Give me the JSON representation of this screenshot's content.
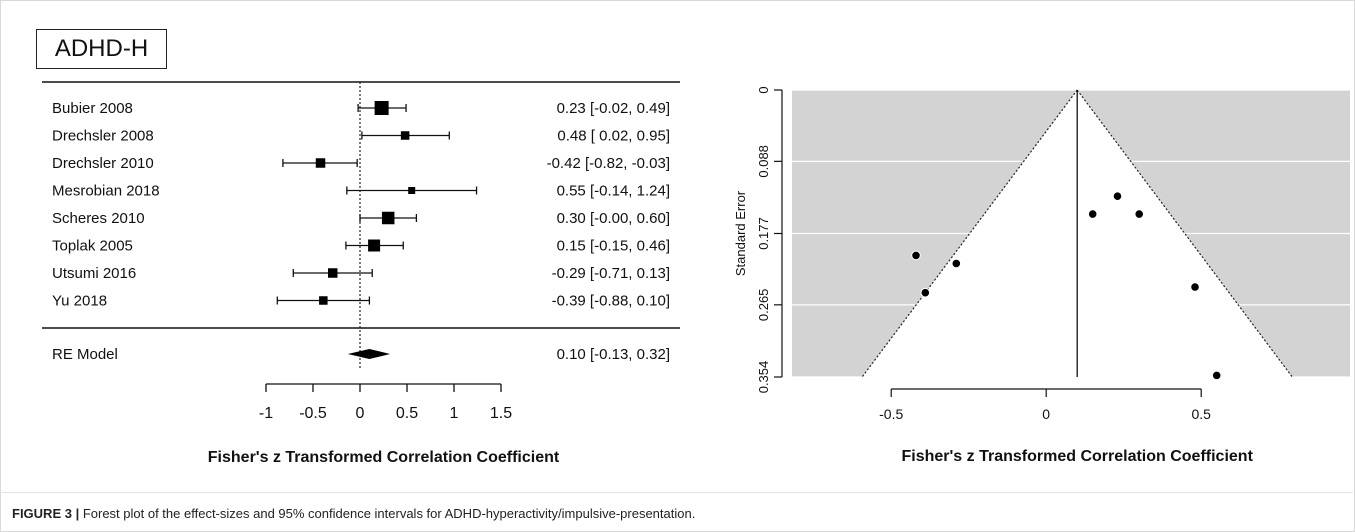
{
  "panel_label": "ADHD-H",
  "caption": {
    "label": "FIGURE 3 |",
    "text": "Forest plot of the effect-sizes and 95% confidence intervals for ADHD-hyperactivity/impulsive-presentation."
  },
  "chart_data": [
    {
      "type": "forest",
      "xlabel": "Fisher's z Transformed Correlation Coefficient",
      "xticks": [
        "-1",
        "-0.5",
        "0",
        "0.5",
        "1",
        "1.5"
      ],
      "xlim": [
        -1,
        1.5
      ],
      "studies": [
        {
          "name": "Bubier 2008",
          "est": 0.23,
          "lo": -0.02,
          "hi": 0.49,
          "label": "0.23 [-0.02,  0.49]",
          "weight": 1.0
        },
        {
          "name": "Drechsler 2008",
          "est": 0.48,
          "lo": 0.02,
          "hi": 0.95,
          "label": "0.48 [ 0.02,  0.95]",
          "weight": 0.45
        },
        {
          "name": "Drechsler 2010",
          "est": -0.42,
          "lo": -0.82,
          "hi": -0.03,
          "label": "-0.42 [-0.82, -0.03]",
          "weight": 0.55
        },
        {
          "name": "Mesrobian 2018",
          "est": 0.55,
          "lo": -0.14,
          "hi": 1.24,
          "label": "0.55 [-0.14,  1.24]",
          "weight": 0.3
        },
        {
          "name": "Scheres 2010",
          "est": 0.3,
          "lo": -0.0,
          "hi": 0.6,
          "label": "0.30 [-0.00,  0.60]",
          "weight": 0.85
        },
        {
          "name": "Toplak 2005",
          "est": 0.15,
          "lo": -0.15,
          "hi": 0.46,
          "label": "0.15 [-0.15,  0.46]",
          "weight": 0.8
        },
        {
          "name": "Utsumi 2016",
          "est": -0.29,
          "lo": -0.71,
          "hi": 0.13,
          "label": "-0.29 [-0.71,  0.13]",
          "weight": 0.55
        },
        {
          "name": "Yu 2018",
          "est": -0.39,
          "lo": -0.88,
          "hi": 0.1,
          "label": "-0.39 [-0.88,  0.10]",
          "weight": 0.45
        }
      ],
      "summary": {
        "name": "RE Model",
        "est": 0.1,
        "lo": -0.13,
        "hi": 0.32,
        "label": "0.10 [-0.13,  0.32]"
      }
    },
    {
      "type": "scatter",
      "subtype": "funnel",
      "xlabel": "Fisher's z Transformed Correlation Coefficient",
      "ylabel": "Standard Error",
      "xticks": [
        "-0.5",
        "0",
        "0.5"
      ],
      "yticks": [
        "0",
        "0.088",
        "0.177",
        "0.265",
        "0.354"
      ],
      "xlim": [
        -0.82,
        0.98
      ],
      "ylim": [
        0.354,
        0
      ],
      "center": 0.1,
      "points": [
        {
          "x": 0.23,
          "y": 0.131
        },
        {
          "x": 0.15,
          "y": 0.153
        },
        {
          "x": 0.3,
          "y": 0.153
        },
        {
          "x": -0.42,
          "y": 0.204
        },
        {
          "x": -0.29,
          "y": 0.214
        },
        {
          "x": -0.39,
          "y": 0.25
        },
        {
          "x": 0.48,
          "y": 0.243
        },
        {
          "x": 0.55,
          "y": 0.352
        }
      ],
      "background": "#d3d3d3",
      "point_color": "#000000"
    }
  ]
}
